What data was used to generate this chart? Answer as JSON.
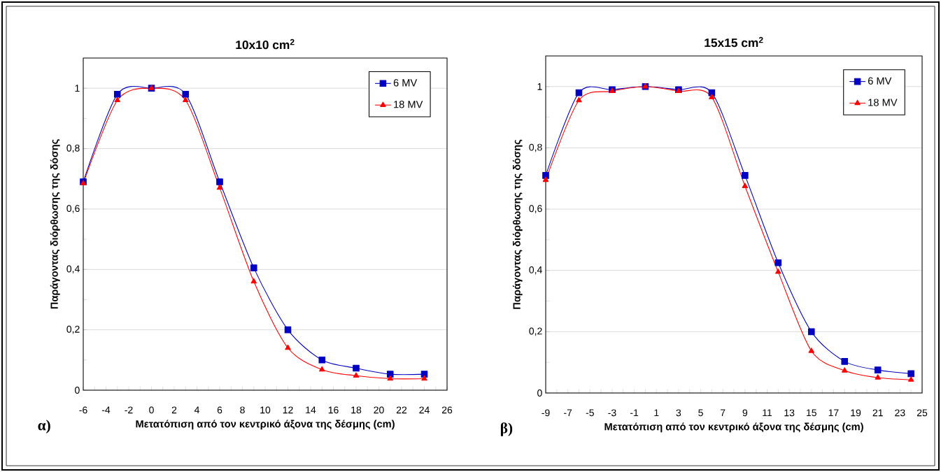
{
  "chart_data": [
    {
      "type": "line",
      "title": "10x10 cm$^{2}$",
      "xlabel": "Μετατόπιση από τον κεντρικό άξονα της δέσμης (cm)",
      "ylabel": "Παράγοντας διόρθωσης της δόσης",
      "annotations": [
        "α)"
      ],
      "x": [
        -6,
        -3,
        0,
        3,
        6,
        9,
        12,
        15,
        18,
        21,
        24
      ],
      "series": [
        {
          "name": "6 MV",
          "color": "#0000c0",
          "marker": "square",
          "values": [
            0.69,
            0.98,
            1.0,
            0.98,
            0.69,
            0.405,
            0.2,
            0.1,
            0.073,
            0.053,
            0.053
          ]
        },
        {
          "name": "18 MV",
          "color": "#ff0000",
          "marker": "triangle",
          "values": [
            0.685,
            0.96,
            1.0,
            0.96,
            0.67,
            0.36,
            0.14,
            0.068,
            0.048,
            0.038,
            0.038
          ]
        }
      ],
      "xlim": [
        -6,
        26
      ],
      "xticks": [
        -6,
        -4,
        -2,
        0,
        2,
        4,
        6,
        8,
        10,
        12,
        14,
        16,
        18,
        20,
        22,
        24,
        26
      ],
      "ylim": [
        0,
        1.1
      ],
      "yticks": [
        0,
        {
          "value": 0.2,
          "label": "0,2"
        },
        {
          "value": 0.4,
          "label": "0,4"
        },
        {
          "value": 0.6,
          "label": "0,6"
        },
        {
          "value": 0.8,
          "label": "0,8"
        },
        1
      ],
      "grid": "y",
      "legend": "top right"
    },
    {
      "type": "line",
      "title": "15x15 cm$^{2}$",
      "xlabel": "Μετατόπιση από τον κεντρικό άξονα της δέσμης (cm)",
      "ylabel": "Παράγοντας διόρθωσης της δόσης",
      "annotations": [
        "β)"
      ],
      "x": [
        -9,
        -6,
        -3,
        0,
        3,
        6,
        9,
        12,
        15,
        18,
        21,
        24
      ],
      "series": [
        {
          "name": "6 MV",
          "color": "#0000c0",
          "marker": "square",
          "values": [
            0.71,
            0.98,
            0.99,
            1.0,
            0.99,
            0.98,
            0.71,
            0.425,
            0.2,
            0.103,
            0.075,
            0.063
          ]
        },
        {
          "name": "18 MV",
          "color": "#ff0000",
          "marker": "triangle",
          "values": [
            0.695,
            0.955,
            0.985,
            1.0,
            0.985,
            0.965,
            0.675,
            0.395,
            0.137,
            0.073,
            0.05,
            0.043
          ]
        }
      ],
      "xlim": [
        -9,
        25
      ],
      "xticks": [
        -9,
        -7,
        -5,
        -3,
        -1,
        1,
        3,
        5,
        7,
        9,
        11,
        13,
        15,
        17,
        19,
        21,
        23,
        25
      ],
      "ylim": [
        0,
        1.1
      ],
      "yticks": [
        0,
        {
          "value": 0.2,
          "label": "0,2"
        },
        {
          "value": 0.4,
          "label": "0,4"
        },
        {
          "value": 0.6,
          "label": "0,6"
        },
        {
          "value": 0.8,
          "label": "0,8"
        },
        1
      ],
      "grid": "y",
      "legend": "top right"
    }
  ]
}
